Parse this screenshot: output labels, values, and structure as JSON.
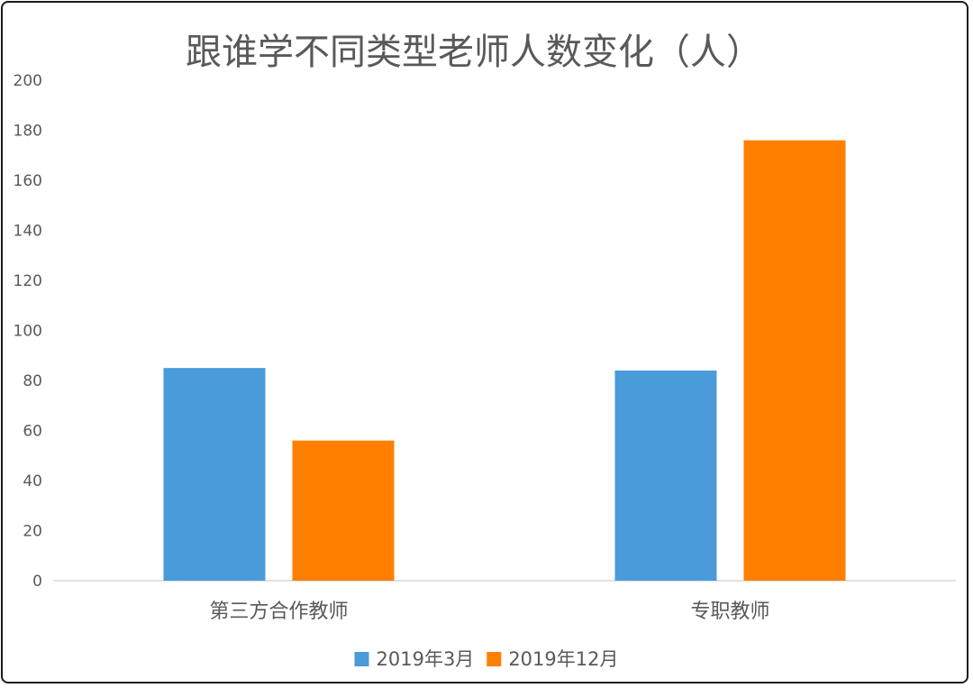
{
  "chart_data": {
    "type": "bar",
    "title": "跟谁学不同类型老师人数变化（人）",
    "categories": [
      "第三方合作教师",
      "专职教师"
    ],
    "series": [
      {
        "name": "2019年3月",
        "values": [
          85,
          84
        ],
        "color": "#4A9BDA"
      },
      {
        "name": "2019年12月",
        "values": [
          56,
          176
        ],
        "color": "#FF7F00"
      }
    ],
    "xlabel": "",
    "ylabel": "",
    "ylim": [
      0,
      200
    ],
    "yticks": [
      0,
      20,
      40,
      60,
      80,
      100,
      120,
      140,
      160,
      180,
      200
    ],
    "grid": false,
    "legend": "bottom"
  }
}
